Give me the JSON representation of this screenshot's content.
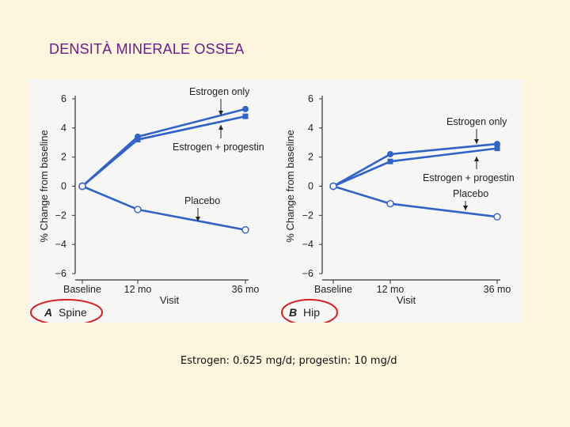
{
  "slide": {
    "title": "DENSITÀ MINERALE OSSEA",
    "caption": "Estrogen: 0.625 mg/d; progestin: 10 mg/d",
    "highlight_color": "#d42020"
  },
  "chart_data": [
    {
      "type": "line",
      "panel_letter": "A",
      "panel_name": "Spine",
      "categories": [
        "Baseline",
        "12 mo",
        "36 mo"
      ],
      "xlabel": "Visit",
      "ylabel": "% Change from baseline",
      "ylim": [
        -6,
        6
      ],
      "yticks": [
        "6",
        "4",
        "2",
        "0",
        "−2",
        "−4",
        "−6"
      ],
      "grid": false,
      "series": [
        {
          "name": "Estrogen only",
          "values": [
            0,
            3.4,
            5.3
          ],
          "marker": "filled-circle",
          "color": "#2f63c8"
        },
        {
          "name": "Estrogen + progestin",
          "values": [
            0,
            3.2,
            4.8
          ],
          "marker": "filled-square",
          "color": "#2f63c8"
        },
        {
          "name": "Placebo",
          "values": [
            0,
            -1.6,
            -3.0
          ],
          "marker": "open-circle",
          "color": "#2f63c8"
        }
      ]
    },
    {
      "type": "line",
      "panel_letter": "B",
      "panel_name": "Hip",
      "categories": [
        "Baseline",
        "12 mo",
        "36 mo"
      ],
      "xlabel": "Visit",
      "ylabel": "% Change from baseline",
      "ylim": [
        -6,
        6
      ],
      "yticks": [
        "6",
        "4",
        "2",
        "0",
        "−2",
        "−4",
        "−6"
      ],
      "grid": false,
      "series": [
        {
          "name": "Estrogen only",
          "values": [
            0,
            2.2,
            2.9
          ],
          "marker": "filled-circle",
          "color": "#2f63c8"
        },
        {
          "name": "Estrogen + progestin",
          "values": [
            0,
            1.7,
            2.6
          ],
          "marker": "filled-square",
          "color": "#2f63c8"
        },
        {
          "name": "Placebo",
          "values": [
            0,
            -1.2,
            -2.1
          ],
          "marker": "open-circle",
          "color": "#2f63c8"
        }
      ]
    }
  ]
}
